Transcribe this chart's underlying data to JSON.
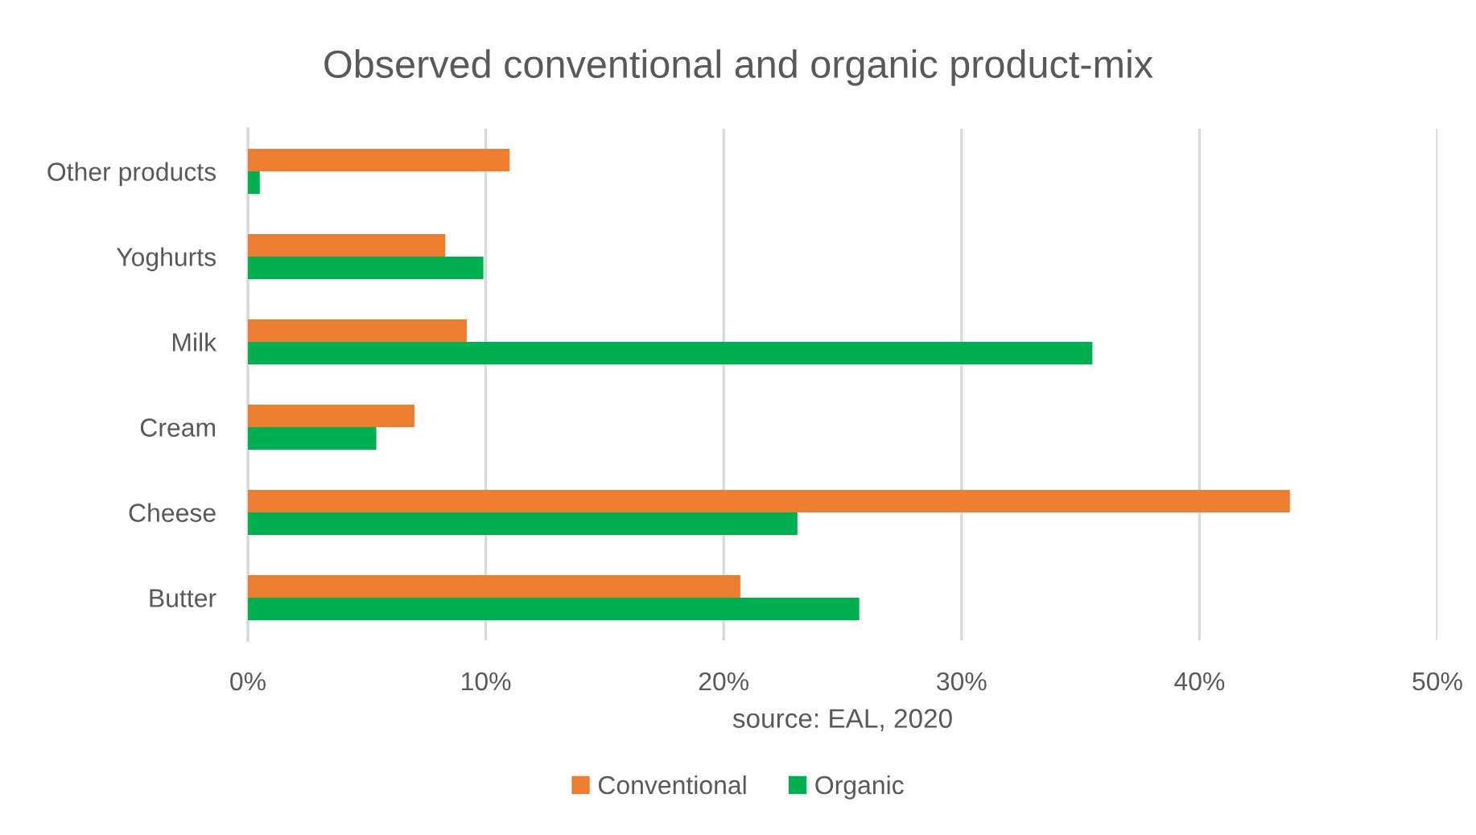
{
  "chart_data": {
    "type": "bar",
    "orientation": "horizontal",
    "title": "Observed conventional and organic product-mix",
    "categories": [
      "Other products",
      "Yoghurts",
      "Milk",
      "Cream",
      "Cheese",
      "Butter"
    ],
    "series": [
      {
        "name": "Conventional",
        "color": "#ed7d31",
        "values": [
          11.0,
          8.3,
          9.2,
          7.0,
          43.8,
          20.7
        ]
      },
      {
        "name": "Organic",
        "color": "#00b050",
        "values": [
          0.5,
          9.9,
          35.5,
          5.4,
          23.1,
          25.7
        ]
      }
    ],
    "xlim": [
      0,
      50
    ],
    "xticks": [
      {
        "value": 0,
        "label": "0%"
      },
      {
        "value": 10,
        "label": "10%"
      },
      {
        "value": 20,
        "label": "20%"
      },
      {
        "value": 30,
        "label": "30%"
      },
      {
        "value": 40,
        "label": "40%"
      },
      {
        "value": 50,
        "label": "50%"
      }
    ],
    "grid": "x",
    "legend": "bottom",
    "annotations": [
      "source: EAL, 2020"
    ]
  }
}
